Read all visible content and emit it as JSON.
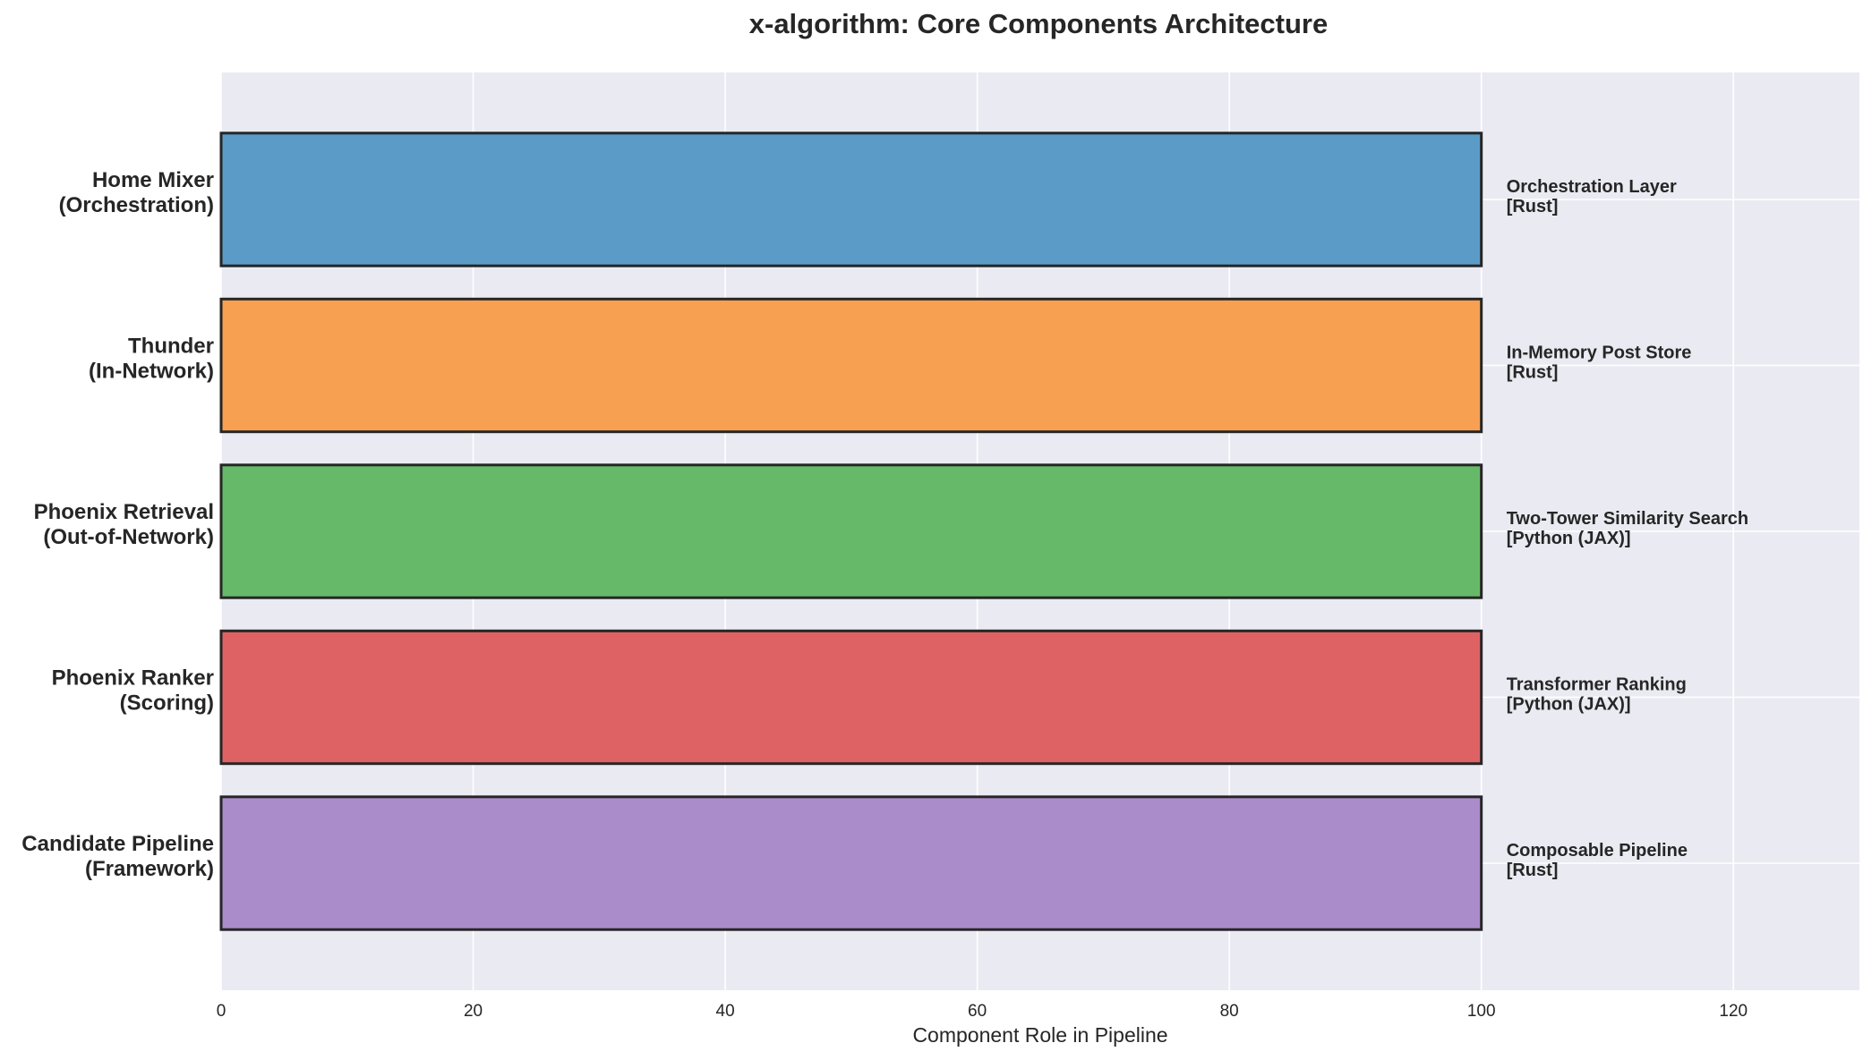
{
  "chart_data": {
    "type": "bar",
    "orientation": "horizontal",
    "title": "x-algorithm: Core Components Architecture",
    "xlabel": "Component Role in Pipeline",
    "ylabel": "",
    "xlim": [
      0,
      130
    ],
    "xticks": [
      0,
      20,
      40,
      60,
      80,
      100,
      120
    ],
    "grid": true,
    "legend": "none",
    "categories": [
      [
        "Home Mixer",
        "(Orchestration)"
      ],
      [
        "Thunder",
        "(In-Network)"
      ],
      [
        "Phoenix Retrieval",
        "(Out-of-Network)"
      ],
      [
        "Phoenix Ranker",
        "(Scoring)"
      ],
      [
        "Candidate Pipeline",
        "(Framework)"
      ]
    ],
    "values": [
      100,
      100,
      100,
      100,
      100
    ],
    "annotations": [
      [
        "Orchestration Layer",
        "[Rust]"
      ],
      [
        "In-Memory Post Store",
        "[Rust]"
      ],
      [
        "Two-Tower Similarity Search",
        "[Python (JAX)]"
      ],
      [
        "Transformer Ranking",
        "[Python (JAX)]"
      ],
      [
        "Composable Pipeline",
        "[Rust]"
      ]
    ],
    "colors": [
      "#5b9bc7",
      "#f7a052",
      "#67b96a",
      "#de6264",
      "#ab8ccb"
    ],
    "plot_background": "#eaeaf2",
    "bar_edge_color": "#262626"
  }
}
